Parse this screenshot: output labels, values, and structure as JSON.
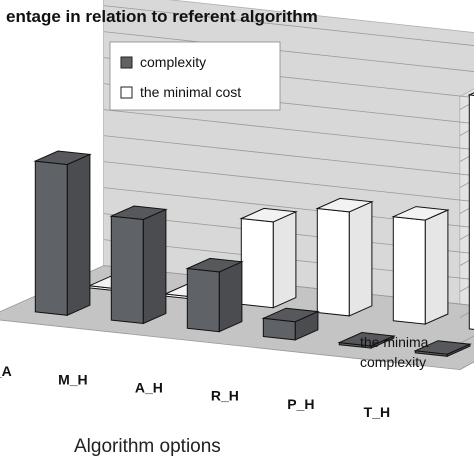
{
  "chart_data": {
    "type": "bar",
    "title": "entage in relation to referent algorithm",
    "xlabel": "Algorithm options",
    "categories": [
      "ic_A",
      "M_H",
      "A_H",
      "R_H",
      "P_H",
      "T_H"
    ],
    "depth_rows": [
      "the minimal cost",
      "complexity"
    ],
    "depth_row_labels": [
      "the minima",
      "complexity"
    ],
    "series": [
      {
        "name": "complexity",
        "values": [
          58,
          40,
          23,
          7,
          -2,
          -2
        ]
      },
      {
        "name": "the minimal cost",
        "values": [
          -2,
          -2,
          33,
          40,
          40,
          90
        ]
      }
    ],
    "ylim": [
      0,
      100
    ],
    "grid": true,
    "legend": {
      "position": "top",
      "entries": [
        "complexity",
        "the minimal cost"
      ]
    },
    "colors": {
      "complexity": "#5f6266",
      "the minimal cost": "#ffffff",
      "wall": "#d8d8d8",
      "floor": "#c4c4c4"
    }
  }
}
